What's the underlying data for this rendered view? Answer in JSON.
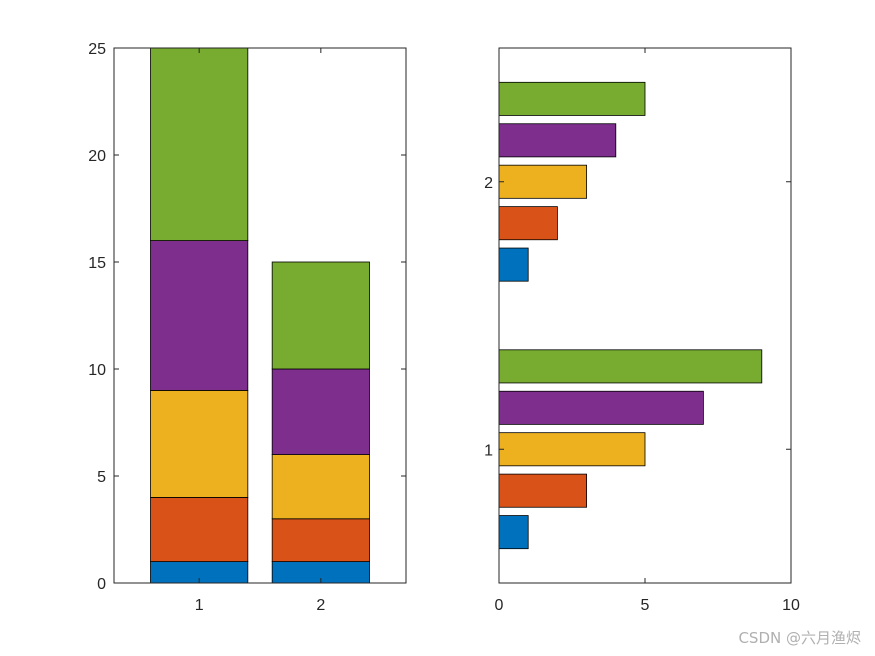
{
  "chart_data": [
    {
      "type": "bar",
      "orientation": "vertical",
      "mode": "stacked",
      "categories": [
        "1",
        "2"
      ],
      "series": [
        {
          "values": [
            1,
            1
          ],
          "color": "#0072BD"
        },
        {
          "values": [
            3,
            2
          ],
          "color": "#D95319"
        },
        {
          "values": [
            5,
            3
          ],
          "color": "#EDB120"
        },
        {
          "values": [
            7,
            4
          ],
          "color": "#7E2F8E"
        },
        {
          "values": [
            9,
            5
          ],
          "color": "#77AC30"
        }
      ],
      "ylim": [
        0,
        25
      ],
      "yticks": [
        0,
        5,
        10,
        15,
        20,
        25
      ],
      "xlim": [
        0.3,
        2.7
      ],
      "grid": false,
      "box": true
    },
    {
      "type": "bar",
      "orientation": "horizontal",
      "mode": "grouped",
      "categories": [
        "1",
        "2"
      ],
      "series": [
        {
          "values": [
            1,
            1
          ],
          "color": "#0072BD"
        },
        {
          "values": [
            3,
            2
          ],
          "color": "#D95319"
        },
        {
          "values": [
            5,
            3
          ],
          "color": "#EDB120"
        },
        {
          "values": [
            7,
            4
          ],
          "color": "#7E2F8E"
        },
        {
          "values": [
            9,
            5
          ],
          "color": "#77AC30"
        }
      ],
      "xlim": [
        0,
        10
      ],
      "xticks": [
        0,
        5,
        10
      ],
      "ylim": [
        0.5,
        2.5
      ],
      "grid": false,
      "box": true
    }
  ],
  "watermark": "CSDN @六月渔烬"
}
